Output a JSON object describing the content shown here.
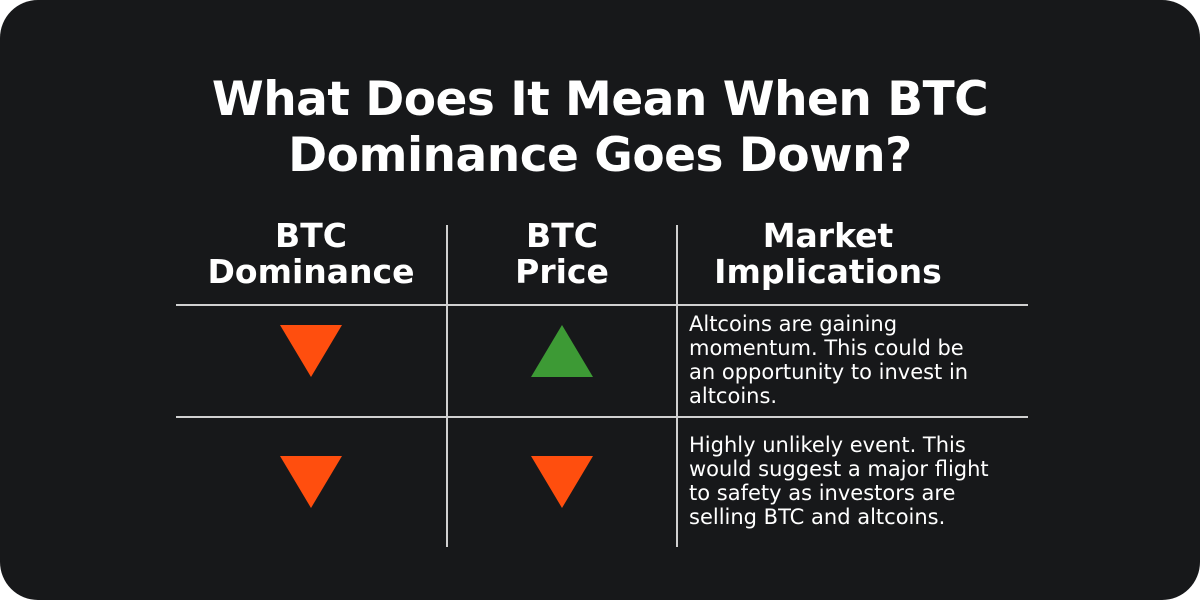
{
  "title": {
    "line1": "What Does It Mean When BTC",
    "line2": "Dominance Goes Down?"
  },
  "table": {
    "headers": {
      "btc_dominance": {
        "line1": "BTC",
        "line2": "Dominance"
      },
      "btc_price": {
        "line1": "BTC",
        "line2": "Price"
      },
      "market_implications": {
        "line1": "Market",
        "line2": "Implications"
      }
    },
    "rows": [
      {
        "btc_dominance_icon": "triangle-down-icon",
        "btc_price_icon": "triangle-up-icon",
        "implication_lines": [
          "Altcoins are gaining",
          "momentum. This could be",
          "an opportunity to invest in",
          "altcoins."
        ]
      },
      {
        "btc_dominance_icon": "triangle-down-icon",
        "btc_price_icon": "triangle-down-icon",
        "implication_lines": [
          "Highly unlikely event. This",
          "would suggest a major flight",
          "to safety as investors are",
          "selling BTC and altcoins."
        ]
      }
    ]
  },
  "colors": {
    "background": "#17181a",
    "down": "#ff4e0e",
    "up": "#3d9a35",
    "text": "#ffffff",
    "divider": "#d0d0d0"
  }
}
